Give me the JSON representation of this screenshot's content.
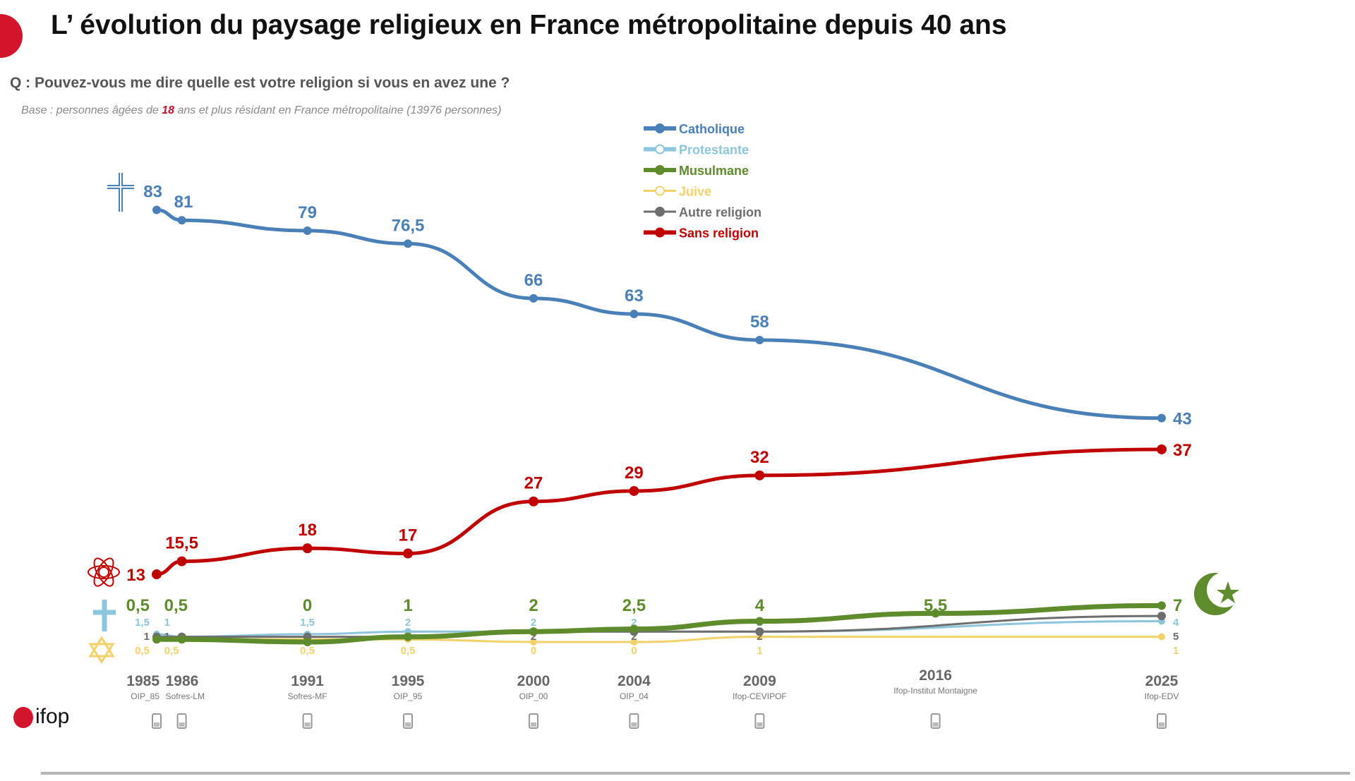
{
  "header": {
    "title": "L’ évolution du paysage religieux en France métropolitaine depuis 40 ans",
    "question": "Q : Pouvez-vous me dire quelle est votre religion si vous en avez une ?",
    "base_prefix": "Base : personnes âgées de ",
    "base_highlight": "18",
    "base_suffix": " ans et plus résidant en France métropolitaine (13976 personnes)"
  },
  "logo": {
    "text": "ifop",
    "color": "#d2152c"
  },
  "chart_data": {
    "type": "line",
    "title": "",
    "xlabel": "",
    "ylabel": "",
    "x": [
      1985,
      1986,
      1991,
      1995,
      2000,
      2004,
      2009,
      2016,
      2025
    ],
    "x_tick_labels": [
      "1985",
      "1986",
      "1991",
      "1995",
      "2000",
      "2004",
      "2009",
      "2016",
      "2025"
    ],
    "sources": [
      "OIP_85",
      "Sofres-LM",
      "Sofres-MF",
      "OIP_95",
      "OIP_00",
      "OIP_04",
      "Ifop-CEVIPOF",
      "Ifop-Institut Montaigne",
      "Ifop-EDV"
    ],
    "ylim": [
      0,
      90
    ],
    "grid": false,
    "legend_placement": "top-center",
    "series": [
      {
        "name": "Catholique",
        "color": "#4a80b8",
        "icon": "latin-cross-icon",
        "values": [
          83,
          81,
          79,
          76.5,
          66,
          63,
          58,
          null,
          43
        ],
        "labels": [
          "83",
          "81",
          "79",
          "76,5",
          "66",
          "63",
          "58",
          "",
          "43"
        ]
      },
      {
        "name": "Protestante",
        "color": "#8cc6dd",
        "icon": "cross-icon",
        "values": [
          1.5,
          1,
          1.5,
          2,
          2,
          2,
          2,
          null,
          4
        ],
        "labels": [
          "1,5",
          "1",
          "1,5",
          "2",
          "2",
          "2",
          "2",
          "",
          "4"
        ]
      },
      {
        "name": "Musulmane",
        "color": "#5e8b2b",
        "icon": "crescent-star-icon",
        "values": [
          0.5,
          0.5,
          0,
          1,
          2,
          2.5,
          4,
          5.5,
          7
        ],
        "labels": [
          "0,5",
          "0,5",
          "0",
          "1",
          "2",
          "2,5",
          "4",
          "5,5",
          "7"
        ]
      },
      {
        "name": "Juive",
        "color": "#f3d26a",
        "icon": "star-of-david-icon",
        "values": [
          0.5,
          0.5,
          0.5,
          0.5,
          0,
          0,
          1,
          null,
          1
        ],
        "labels": [
          "0,5",
          "0,5",
          "0,5",
          "0,5",
          "0",
          "0",
          "1",
          "",
          "1"
        ]
      },
      {
        "name": "Autre religion",
        "color": "#6e6e6e",
        "icon": "dot-icon",
        "values": [
          1,
          1,
          1,
          1,
          2,
          2,
          2,
          null,
          5
        ],
        "labels": [
          "1",
          "1",
          "1",
          "1",
          "2",
          "2",
          "2",
          "",
          "5"
        ]
      },
      {
        "name": "Sans religion",
        "color": "#c00000",
        "icon": "atom-icon",
        "values": [
          13,
          15.5,
          18,
          17,
          27,
          29,
          32,
          null,
          37
        ],
        "labels": [
          "13",
          "15,5",
          "18",
          "17",
          "27",
          "29",
          "32",
          "",
          "37"
        ]
      }
    ]
  }
}
